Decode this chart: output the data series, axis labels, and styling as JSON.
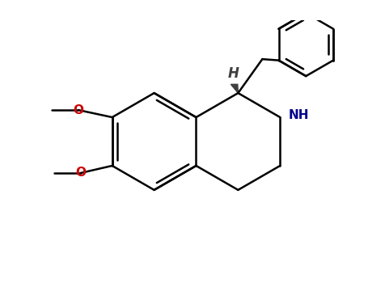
{
  "background": "#ffffff",
  "bond_color": "#000000",
  "bond_width": 1.8,
  "NH_color": "#00008B",
  "O_color": "#cc0000",
  "H_color": "#404040",
  "figsize": [
    4.55,
    3.5
  ],
  "dpi": 100,
  "xlim": [
    -4.0,
    3.5
  ],
  "ylim": [
    -2.5,
    2.5
  ]
}
